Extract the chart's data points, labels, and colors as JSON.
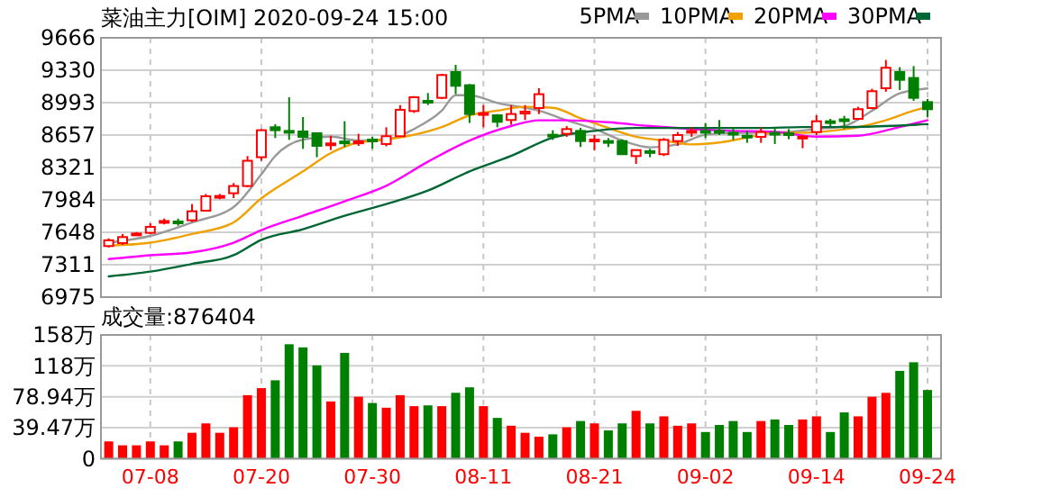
{
  "chart_data": [
    {
      "type": "candlestick",
      "title": "菜油主力[OIM] 2020-09-24 15:00",
      "categories": [
        null,
        null,
        null,
        null,
        null,
        null,
        null,
        null,
        null,
        null,
        null,
        null,
        null,
        null,
        null,
        null,
        null,
        null,
        null,
        null,
        null,
        null,
        null,
        null,
        null,
        null,
        null,
        null,
        null,
        null,
        null,
        null,
        null,
        null,
        null,
        null,
        null,
        null,
        null,
        null,
        null,
        null,
        null,
        null,
        null,
        null,
        null,
        null,
        null,
        null,
        null,
        null,
        null,
        null,
        null,
        null,
        null,
        null,
        null,
        null
      ],
      "ohlc": [
        [
          7505,
          7585,
          7490,
          7565
        ],
        [
          7536,
          7629,
          7517,
          7598
        ],
        [
          7620,
          7650,
          7610,
          7635
        ],
        [
          7642,
          7741,
          7629,
          7704
        ],
        [
          7748,
          7790,
          7730,
          7765
        ],
        [
          7760,
          7790,
          7716,
          7750
        ],
        [
          7772,
          7941,
          7754,
          7866
        ],
        [
          7872,
          8046,
          7866,
          8022
        ],
        [
          8010,
          8046,
          7990,
          8025
        ],
        [
          8053,
          8159,
          8003,
          8128
        ],
        [
          8128,
          8439,
          8115,
          8390
        ],
        [
          8427,
          8719,
          8390,
          8707
        ],
        [
          8738,
          8769,
          8626,
          8707
        ],
        [
          8700,
          9049,
          8607,
          8688
        ],
        [
          8694,
          8844,
          8514,
          8638
        ],
        [
          8676,
          8676,
          8427,
          8545
        ],
        [
          8560,
          8650,
          8501,
          8570
        ],
        [
          8590,
          8800,
          8533,
          8575
        ],
        [
          8575,
          8670,
          8545,
          8590
        ],
        [
          8610,
          8638,
          8514,
          8600
        ],
        [
          8564,
          8738,
          8539,
          8645
        ],
        [
          8645,
          8968,
          8638,
          8919
        ],
        [
          8906,
          9062,
          8887,
          9049
        ],
        [
          9012,
          9093,
          8968,
          9000
        ],
        [
          9043,
          9292,
          9031,
          9280
        ],
        [
          9311,
          9386,
          9081,
          9168
        ],
        [
          9174,
          9186,
          8782,
          8875
        ],
        [
          8870,
          8968,
          8738,
          8885
        ],
        [
          8862,
          8875,
          8738,
          8794
        ],
        [
          8813,
          8968,
          8763,
          8875
        ],
        [
          8880,
          8968,
          8813,
          8900
        ],
        [
          8937,
          9143,
          8875,
          9081
        ],
        [
          8660,
          8707,
          8607,
          8650
        ],
        [
          8670,
          8750,
          8638,
          8719
        ],
        [
          8700,
          8732,
          8533,
          8595
        ],
        [
          8600,
          8657,
          8501,
          8610
        ],
        [
          8595,
          8626,
          8533,
          8585
        ],
        [
          8595,
          8613,
          8452,
          8458
        ],
        [
          8439,
          8508,
          8358,
          8501
        ],
        [
          8490,
          8514,
          8427,
          8480
        ],
        [
          8458,
          8626,
          8439,
          8607
        ],
        [
          8594,
          8688,
          8545,
          8657
        ],
        [
          8690,
          8738,
          8638,
          8700
        ],
        [
          8700,
          8782,
          8626,
          8690
        ],
        [
          8700,
          8813,
          8657,
          8688
        ],
        [
          8680,
          8738,
          8607,
          8670
        ],
        [
          8650,
          8700,
          8576,
          8640
        ],
        [
          8638,
          8738,
          8576,
          8688
        ],
        [
          8680,
          8738,
          8564,
          8670
        ],
        [
          8675,
          8719,
          8613,
          8665
        ],
        [
          8630,
          8657,
          8520,
          8640
        ],
        [
          8688,
          8862,
          8657,
          8800
        ],
        [
          8800,
          8825,
          8750,
          8790
        ],
        [
          8820,
          8856,
          8720,
          8810
        ],
        [
          8825,
          8950,
          8813,
          8925
        ],
        [
          8937,
          9137,
          8925,
          9112
        ],
        [
          9143,
          9436,
          9106,
          9355
        ],
        [
          9311,
          9361,
          9124,
          9230
        ],
        [
          9249,
          9373,
          9012,
          9043
        ],
        [
          8999,
          9031,
          8844,
          8925
        ]
      ],
      "colors": [
        "#ff0000",
        "#ff0000",
        "#ff0000",
        "#ff0000",
        "#ff0000",
        "#008000",
        "#ff0000",
        "#ff0000",
        "#ff0000",
        "#ff0000",
        "#ff0000",
        "#ff0000",
        "#008000",
        "#008000",
        "#008000",
        "#008000",
        "#ff0000",
        "#008000",
        "#ff0000",
        "#008000",
        "#ff0000",
        "#ff0000",
        "#ff0000",
        "#008000",
        "#ff0000",
        "#008000",
        "#008000",
        "#ff0000",
        "#008000",
        "#ff0000",
        "#ff0000",
        "#ff0000",
        "#008000",
        "#ff0000",
        "#008000",
        "#ff0000",
        "#008000",
        "#008000",
        "#ff0000",
        "#008000",
        "#ff0000",
        "#ff0000",
        "#ff0000",
        "#008000",
        "#008000",
        "#008000",
        "#008000",
        "#ff0000",
        "#008000",
        "#008000",
        "#ff0000",
        "#ff0000",
        "#008000",
        "#008000",
        "#ff0000",
        "#ff0000",
        "#ff0000",
        "#008000",
        "#008000",
        "#008000"
      ],
      "series": [
        {
          "name": "5PMA",
          "type": "line",
          "color": "#999999",
          "values": [
            7540,
            null,
            null,
            7610,
            null,
            null,
            7750,
            null,
            null,
            7910,
            null,
            8250,
            8440,
            null,
            8610,
            null,
            8640,
            null,
            8600,
            null,
            8610,
            null,
            8720,
            null,
            8910,
            9070,
            9070,
            null,
            8990,
            null,
            8940,
            8910,
            null,
            8810,
            null,
            8720,
            null,
            8600,
            null,
            8530,
            null,
            8560,
            null,
            8660,
            null,
            8680,
            null,
            8680,
            null,
            8690,
            null,
            8720,
            null,
            8750,
            null,
            8910,
            null,
            9090,
            null,
            9140
          ]
        },
        {
          "name": "10PMA",
          "type": "line",
          "color": "#f0a000",
          "values": [
            7510,
            null,
            null,
            7540,
            null,
            null,
            7630,
            null,
            null,
            7750,
            null,
            8000,
            8100,
            null,
            8280,
            null,
            8470,
            null,
            8580,
            null,
            8610,
            null,
            8660,
            null,
            8740,
            null,
            8860,
            null,
            8910,
            null,
            8950,
            null,
            8940,
            null,
            8830,
            null,
            8730,
            null,
            8640,
            null,
            8600,
            null,
            8560,
            null,
            8580,
            null,
            8630,
            null,
            8680,
            null,
            8680,
            null,
            8700,
            null,
            8740,
            null,
            8810,
            null,
            8910,
            8950
          ]
        },
        {
          "name": "20PMA",
          "type": "line",
          "color": "#ff00ff",
          "values": [
            7370,
            null,
            null,
            7410,
            null,
            null,
            7440,
            null,
            null,
            7540,
            null,
            7670,
            null,
            null,
            7820,
            null,
            null,
            7970,
            null,
            null,
            8130,
            null,
            null,
            8380,
            null,
            null,
            8600,
            null,
            null,
            8750,
            null,
            8810,
            null,
            8810,
            null,
            null,
            8790,
            null,
            null,
            8750,
            null,
            null,
            8720,
            null,
            null,
            8700,
            null,
            null,
            8690,
            null,
            null,
            8640,
            null,
            null,
            8650,
            null,
            null,
            8740,
            null,
            8810
          ]
        },
        {
          "name": "30PMA",
          "type": "line",
          "color": "#006633",
          "values": [
            7190,
            null,
            null,
            7240,
            null,
            null,
            7320,
            null,
            null,
            7410,
            null,
            7570,
            null,
            null,
            7680,
            null,
            null,
            7820,
            null,
            null,
            7940,
            null,
            null,
            8080,
            null,
            null,
            8280,
            null,
            null,
            8440,
            null,
            null,
            8630,
            null,
            null,
            8700,
            null,
            null,
            8730,
            null,
            null,
            8730,
            null,
            null,
            8730,
            null,
            null,
            8730,
            null,
            null,
            8740,
            null,
            null,
            8740,
            null,
            null,
            8750,
            null,
            null,
            8770
          ]
        }
      ],
      "ylim": [
        6975,
        9666
      ],
      "yticks": [
        6975,
        7311,
        7648,
        7984,
        8321,
        8657,
        8993,
        9330,
        9666
      ],
      "grid": true,
      "legend": "top right",
      "tick_labels": "y"
    },
    {
      "type": "bar",
      "title": "成交量:876404",
      "categories": [
        null,
        null,
        null,
        "07-08",
        null,
        null,
        null,
        null,
        null,
        null,
        null,
        "07-20",
        null,
        null,
        null,
        null,
        null,
        null,
        null,
        "07-30",
        null,
        null,
        null,
        null,
        null,
        null,
        null,
        "08-11",
        null,
        null,
        null,
        null,
        null,
        null,
        null,
        "08-21",
        null,
        null,
        null,
        null,
        null,
        null,
        null,
        "09-02",
        null,
        null,
        null,
        null,
        null,
        null,
        null,
        "09-14",
        null,
        null,
        null,
        null,
        null,
        null,
        null,
        "09-24"
      ],
      "values": [
        22,
        17,
        17,
        22,
        17,
        22,
        33,
        45,
        33,
        40,
        81,
        90,
        100,
        146,
        142,
        119,
        73,
        135,
        79,
        71,
        65,
        81,
        67,
        68,
        67,
        84,
        91,
        67,
        52,
        42,
        33,
        28,
        31,
        40,
        48,
        45,
        36,
        45,
        61,
        45,
        54,
        42,
        45,
        34,
        43,
        48,
        34,
        48,
        50,
        43,
        50,
        54,
        34,
        59,
        54,
        79,
        84,
        112,
        123,
        87.64
      ],
      "colors": [
        "#ff0000",
        "#ff0000",
        "#ff0000",
        "#ff0000",
        "#ff0000",
        "#008000",
        "#ff0000",
        "#ff0000",
        "#ff0000",
        "#ff0000",
        "#ff0000",
        "#ff0000",
        "#008000",
        "#008000",
        "#008000",
        "#008000",
        "#ff0000",
        "#008000",
        "#ff0000",
        "#008000",
        "#ff0000",
        "#ff0000",
        "#ff0000",
        "#008000",
        "#ff0000",
        "#008000",
        "#008000",
        "#ff0000",
        "#008000",
        "#ff0000",
        "#ff0000",
        "#ff0000",
        "#008000",
        "#ff0000",
        "#008000",
        "#ff0000",
        "#008000",
        "#008000",
        "#ff0000",
        "#008000",
        "#ff0000",
        "#ff0000",
        "#ff0000",
        "#008000",
        "#008000",
        "#008000",
        "#008000",
        "#ff0000",
        "#008000",
        "#008000",
        "#ff0000",
        "#ff0000",
        "#008000",
        "#008000",
        "#ff0000",
        "#ff0000",
        "#ff0000",
        "#008000",
        "#008000",
        "#008000"
      ],
      "ylim": [
        0,
        157.88
      ],
      "yticks": [
        0,
        {
          "value": 39.47,
          "label": "39.47万"
        },
        {
          "value": 78.94,
          "label": "78.94万"
        },
        {
          "value": 118.41,
          "label": "118万"
        },
        {
          "value": 157.88,
          "label": "158万"
        }
      ],
      "grid": true
    }
  ]
}
